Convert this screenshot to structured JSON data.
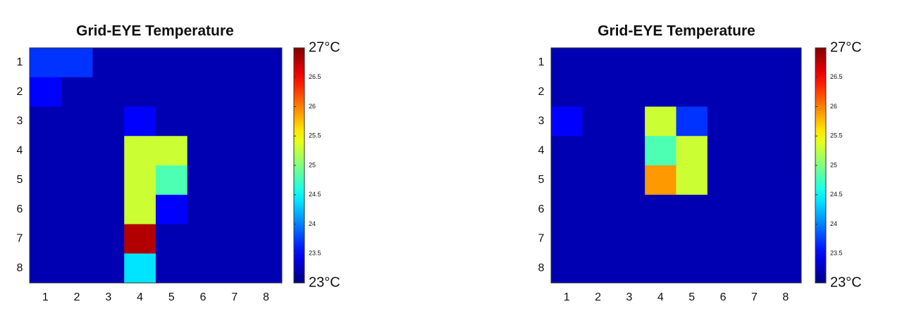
{
  "chart_data": [
    {
      "type": "heatmap",
      "title": "Grid-EYE Temperature",
      "x": [
        1,
        2,
        3,
        4,
        5,
        6,
        7,
        8
      ],
      "y": [
        1,
        2,
        3,
        4,
        5,
        6,
        7,
        8
      ],
      "values": [
        [
          23.7,
          23.7,
          23.2,
          23.2,
          23.2,
          23.2,
          23.2,
          23.2
        ],
        [
          23.5,
          23.2,
          23.2,
          23.2,
          23.2,
          23.2,
          23.2,
          23.2
        ],
        [
          23.2,
          23.2,
          23.2,
          23.5,
          23.2,
          23.2,
          23.2,
          23.2
        ],
        [
          23.2,
          23.2,
          23.2,
          25.3,
          25.3,
          23.2,
          23.2,
          23.2
        ],
        [
          23.2,
          23.2,
          23.2,
          25.3,
          24.8,
          23.2,
          23.2,
          23.2
        ],
        [
          23.2,
          23.2,
          23.2,
          25.3,
          23.5,
          23.2,
          23.2,
          23.2
        ],
        [
          23.2,
          23.2,
          23.2,
          26.8,
          23.2,
          23.2,
          23.2,
          23.2
        ],
        [
          23.2,
          23.2,
          23.2,
          24.4,
          23.2,
          23.2,
          23.2,
          23.2
        ]
      ],
      "colormap": "jet",
      "clim": [
        23,
        27
      ],
      "cticks": [
        {
          "value": 23,
          "label": "23°C"
        },
        23.5,
        24,
        24.5,
        25,
        25.5,
        26,
        26.5,
        {
          "value": 27,
          "label": "27°C"
        }
      ]
    },
    {
      "type": "heatmap",
      "title": "Grid-EYE Temperature",
      "x": [
        1,
        2,
        3,
        4,
        5,
        6,
        7,
        8
      ],
      "y": [
        1,
        2,
        3,
        4,
        5,
        6,
        7,
        8
      ],
      "values": [
        [
          23.2,
          23.2,
          23.2,
          23.2,
          23.2,
          23.2,
          23.2,
          23.2
        ],
        [
          23.2,
          23.2,
          23.2,
          23.2,
          23.2,
          23.2,
          23.2,
          23.2
        ],
        [
          23.5,
          23.2,
          23.2,
          25.3,
          23.7,
          23.2,
          23.2,
          23.2
        ],
        [
          23.2,
          23.2,
          23.2,
          24.8,
          25.3,
          23.2,
          23.2,
          23.2
        ],
        [
          23.2,
          23.2,
          23.2,
          25.9,
          25.3,
          23.2,
          23.2,
          23.2
        ],
        [
          23.2,
          23.2,
          23.2,
          23.2,
          23.2,
          23.2,
          23.2,
          23.2
        ],
        [
          23.2,
          23.2,
          23.2,
          23.2,
          23.2,
          23.2,
          23.2,
          23.2
        ],
        [
          23.2,
          23.2,
          23.2,
          23.2,
          23.2,
          23.2,
          23.2,
          23.2
        ]
      ],
      "colormap": "jet",
      "clim": [
        23,
        27
      ],
      "cticks": [
        {
          "value": 23,
          "label": "23°C"
        },
        23.5,
        24,
        24.5,
        25,
        25.5,
        26,
        26.5,
        {
          "value": 27,
          "label": "27°C"
        }
      ]
    }
  ]
}
